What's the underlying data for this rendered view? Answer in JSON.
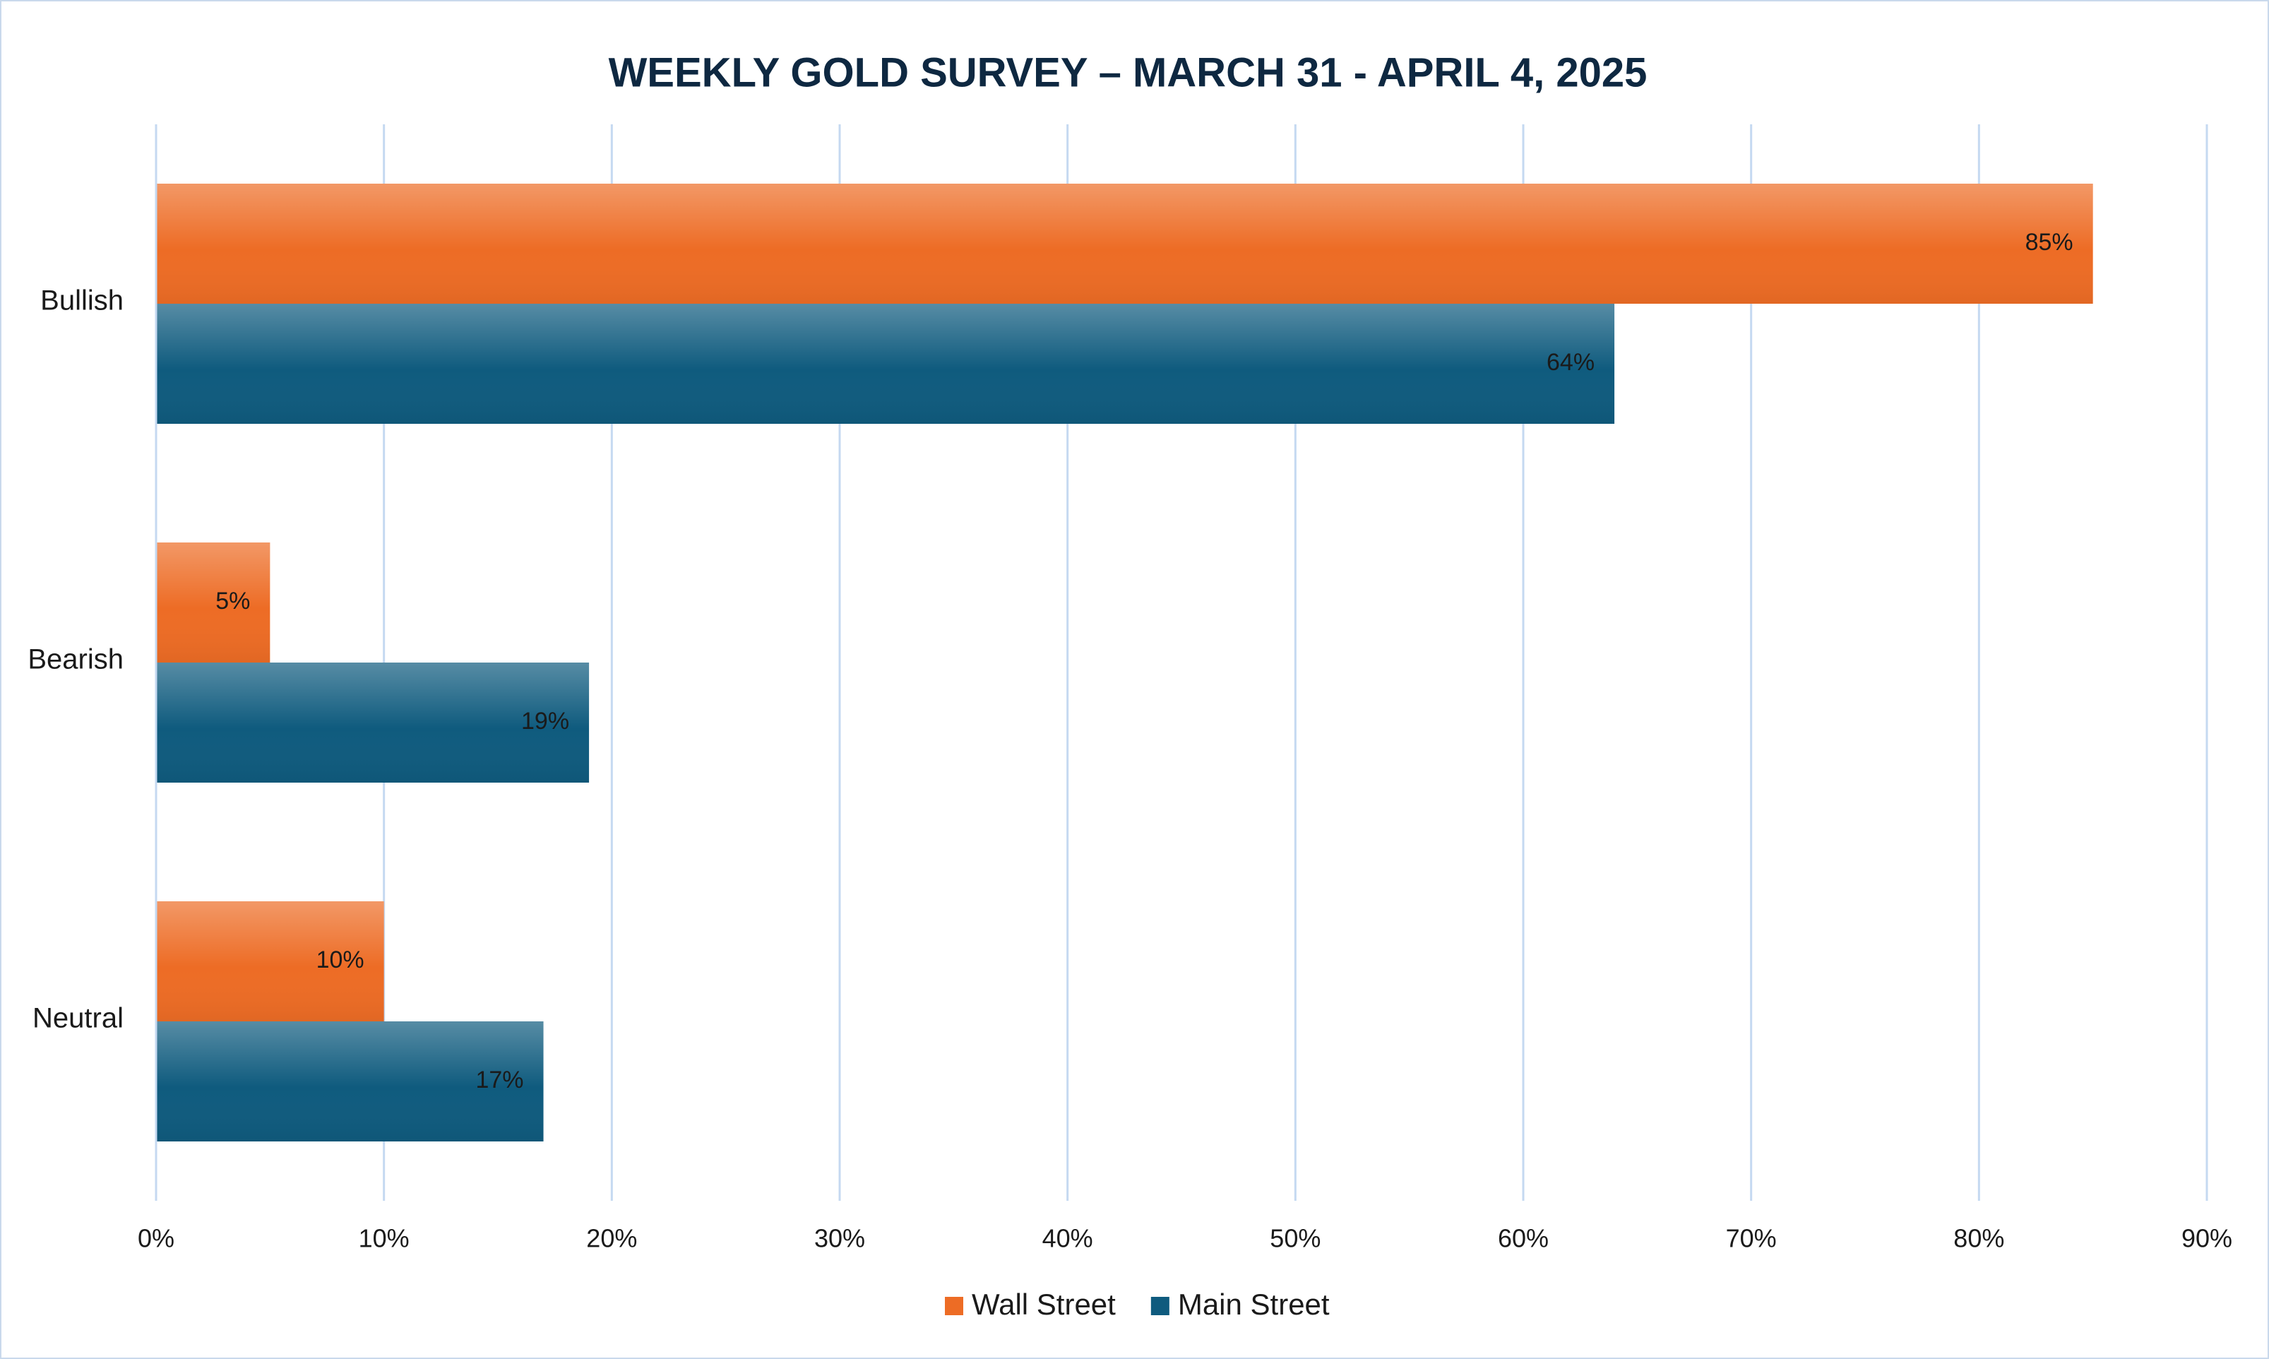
{
  "chart_data": {
    "type": "bar",
    "orientation": "horizontal",
    "title": "WEEKLY GOLD SURVEY – MARCH 31 - APRIL 4, 2025",
    "categories": [
      "Bullish",
      "Bearish",
      "Neutral"
    ],
    "series": [
      {
        "name": "Wall Street",
        "color": "#ed6c25",
        "values": [
          85,
          5,
          10
        ],
        "value_labels": [
          "85%",
          "5%",
          "10%"
        ]
      },
      {
        "name": "Main Street",
        "color": "#0f5b7e",
        "values": [
          64,
          19,
          17
        ],
        "value_labels": [
          "64%",
          "19%",
          "17%"
        ]
      }
    ],
    "xlim": [
      0,
      90
    ],
    "xticks": [
      {
        "value": 0,
        "label": "0%"
      },
      {
        "value": 10,
        "label": "10%"
      },
      {
        "value": 20,
        "label": "20%"
      },
      {
        "value": 30,
        "label": "30%"
      },
      {
        "value": 40,
        "label": "40%"
      },
      {
        "value": 50,
        "label": "50%"
      },
      {
        "value": 60,
        "label": "60%"
      },
      {
        "value": 70,
        "label": "70%"
      },
      {
        "value": 80,
        "label": "80%"
      },
      {
        "value": 90,
        "label": "90%"
      }
    ],
    "grid": true,
    "legend": "bottom"
  }
}
